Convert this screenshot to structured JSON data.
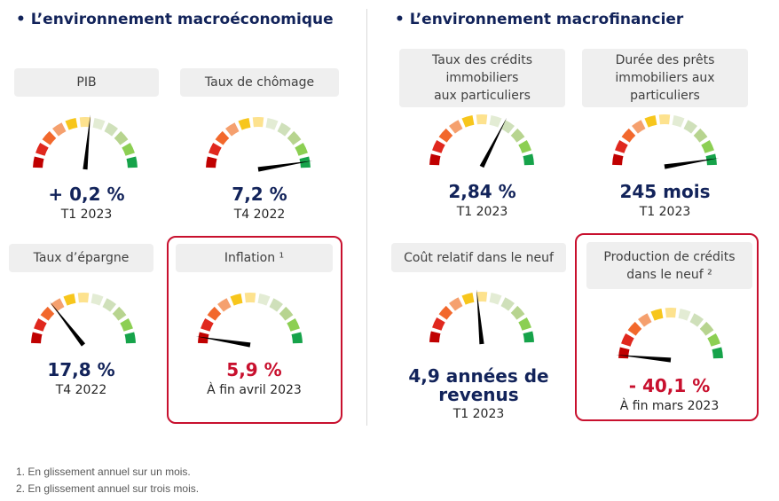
{
  "sections": {
    "macro_eco": {
      "title": "• L’environnement macroéconomique"
    },
    "macro_fin": {
      "title": "• L’environnement macrofinancier"
    }
  },
  "gauges": [
    {
      "label": "PIB",
      "value": "+ 0,2 %",
      "period": "T1 2023",
      "level": 0.53,
      "highlighted": false,
      "negative": false
    },
    {
      "label": "Taux de chômage",
      "value": "7,2 %",
      "period": "T4 2022",
      "level": 0.95,
      "highlighted": false,
      "negative": false
    },
    {
      "label": "Taux d’épargne",
      "value": "17,8 %",
      "period": "T4 2022",
      "level": 0.29,
      "highlighted": false,
      "negative": false
    },
    {
      "label": "Inflation ¹",
      "value": "5,9 %",
      "period": "À fin avril 2023",
      "level": 0.05,
      "highlighted": true,
      "negative": true
    },
    {
      "label": "Taux des crédits\nimmobiliers\naux particuliers",
      "value": "2,84 %",
      "period": "T1 2023",
      "level": 0.65,
      "highlighted": false,
      "negative": false
    },
    {
      "label": "Durée des prêts\nimmobiliers aux\nparticuliers",
      "value": "245 mois",
      "period": "T1 2023",
      "level": 0.95,
      "highlighted": false,
      "negative": false
    },
    {
      "label": "Coût relatif dans le neuf",
      "value": "4,9 années de\nrevenus",
      "period": "T1 2023",
      "level": 0.47,
      "highlighted": false,
      "negative": false
    },
    {
      "label": "Production de crédits\ndans le neuf ²",
      "value": "- 40,1 %",
      "period": "À fin mars 2023",
      "level": 0.03,
      "highlighted": true,
      "negative": true
    }
  ],
  "gauge_colors": [
    "#c00000",
    "#e0281e",
    "#f2682c",
    "#f5a06e",
    "#f7c61c",
    "#fde28e",
    "#e3ecd4",
    "#cfe0ba",
    "#b7d48f",
    "#8ccf53",
    "#16a34a"
  ],
  "needle_color": "#000000",
  "footnotes": [
    "1. En glissement annuel sur un mois.",
    "2. En glissement annuel sur trois mois."
  ]
}
